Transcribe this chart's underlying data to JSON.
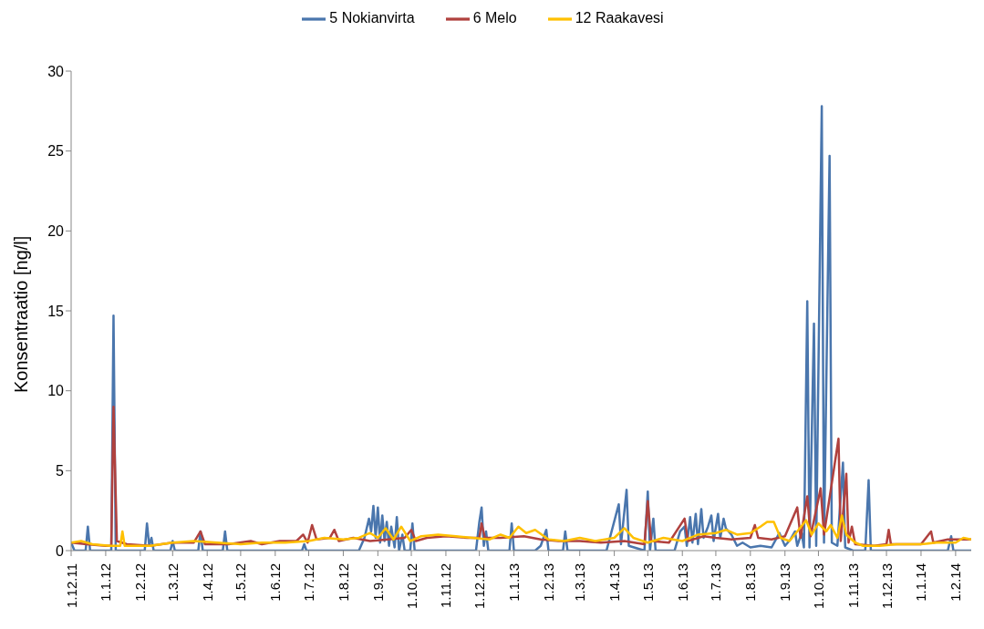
{
  "chart_data": {
    "type": "line",
    "ylabel": "Konsentraatio [ng/l]",
    "legend": "top",
    "grid": false,
    "marker": "none",
    "line_style": "solid",
    "xlim": [
      "2011-12-01",
      "2014-02-15"
    ],
    "ylim": [
      0,
      30
    ],
    "yticks": [
      0,
      5,
      10,
      15,
      20,
      25,
      30
    ],
    "xticks": [
      {
        "value": "2011-12-01",
        "label": "1.12.11"
      },
      {
        "value": "2012-01-01",
        "label": "1.1.12"
      },
      {
        "value": "2012-02-01",
        "label": "1.2.12"
      },
      {
        "value": "2012-03-01",
        "label": "1.3.12"
      },
      {
        "value": "2012-04-01",
        "label": "1.4.12"
      },
      {
        "value": "2012-05-01",
        "label": "1.5.12"
      },
      {
        "value": "2012-06-01",
        "label": "1.6.12"
      },
      {
        "value": "2012-07-01",
        "label": "1.7.12"
      },
      {
        "value": "2012-08-01",
        "label": "1.8.12"
      },
      {
        "value": "2012-09-01",
        "label": "1.9.12"
      },
      {
        "value": "2012-10-01",
        "label": "1.10.12"
      },
      {
        "value": "2012-11-01",
        "label": "1.11.12"
      },
      {
        "value": "2012-12-01",
        "label": "1.12.12"
      },
      {
        "value": "2013-01-01",
        "label": "1.1.13"
      },
      {
        "value": "2013-02-01",
        "label": "1.2.13"
      },
      {
        "value": "2013-03-01",
        "label": "1.3.13"
      },
      {
        "value": "2013-04-01",
        "label": "1.4.13"
      },
      {
        "value": "2013-05-01",
        "label": "1.5.13"
      },
      {
        "value": "2013-06-01",
        "label": "1.6.13"
      },
      {
        "value": "2013-07-01",
        "label": "1.7.13"
      },
      {
        "value": "2013-08-01",
        "label": "1.8.13"
      },
      {
        "value": "2013-09-01",
        "label": "1.9.13"
      },
      {
        "value": "2013-10-01",
        "label": "1.10.13"
      },
      {
        "value": "2013-11-01",
        "label": "1.11.13"
      },
      {
        "value": "2013-12-01",
        "label": "1.12.13"
      },
      {
        "value": "2014-01-01",
        "label": "1.1.14"
      },
      {
        "value": "2014-02-01",
        "label": "1.2.14"
      }
    ],
    "series": [
      {
        "name": "5 Nokianvirta",
        "color": "#4a76ad",
        "x": [
          "2011-12-01",
          "2011-12-04",
          "2011-12-14",
          "2011-12-16",
          "2011-12-18",
          "2012-01-06",
          "2012-01-08",
          "2012-01-10",
          "2012-02-05",
          "2012-02-07",
          "2012-02-09",
          "2012-02-11",
          "2012-02-13",
          "2012-02-28",
          "2012-03-01",
          "2012-03-03",
          "2012-03-24",
          "2012-03-26",
          "2012-03-28",
          "2012-04-15",
          "2012-04-17",
          "2012-04-19",
          "2012-06-25",
          "2012-06-27",
          "2012-06-29",
          "2012-08-15",
          "2012-08-20",
          "2012-08-24",
          "2012-08-26",
          "2012-08-28",
          "2012-08-30",
          "2012-09-01",
          "2012-09-03",
          "2012-09-05",
          "2012-09-07",
          "2012-09-09",
          "2012-09-11",
          "2012-09-13",
          "2012-09-16",
          "2012-09-18",
          "2012-09-20",
          "2012-09-23",
          "2012-09-25",
          "2012-09-30",
          "2012-10-02",
          "2012-10-04",
          "2012-11-28",
          "2012-12-01",
          "2012-12-03",
          "2012-12-05",
          "2012-12-07",
          "2012-12-09",
          "2012-12-28",
          "2012-12-30",
          "2013-01-01",
          "2013-01-20",
          "2013-01-25",
          "2013-01-30",
          "2013-02-01",
          "2013-02-14",
          "2013-02-16",
          "2013-02-18",
          "2013-03-25",
          "2013-04-05",
          "2013-04-07",
          "2013-04-12",
          "2013-04-14",
          "2013-04-28",
          "2013-05-01",
          "2013-05-03",
          "2013-05-06",
          "2013-05-08",
          "2013-05-25",
          "2013-05-30",
          "2013-06-03",
          "2013-06-05",
          "2013-06-08",
          "2013-06-10",
          "2013-06-13",
          "2013-06-15",
          "2013-06-18",
          "2013-06-20",
          "2013-06-24",
          "2013-06-27",
          "2013-06-29",
          "2013-07-03",
          "2013-07-05",
          "2013-07-08",
          "2013-07-10",
          "2013-07-15",
          "2013-07-20",
          "2013-07-25",
          "2013-08-01",
          "2013-08-10",
          "2013-08-20",
          "2013-08-27",
          "2013-09-01",
          "2013-09-06",
          "2013-09-10",
          "2013-09-12",
          "2013-09-16",
          "2013-09-18",
          "2013-09-21",
          "2013-09-23",
          "2013-09-27",
          "2013-09-29",
          "2013-10-04",
          "2013-10-06",
          "2013-10-11",
          "2013-10-13",
          "2013-10-18",
          "2013-10-23",
          "2013-10-25",
          "2013-11-01",
          "2013-11-12",
          "2013-11-15",
          "2013-11-17",
          "2014-01-25",
          "2014-01-28",
          "2014-01-30",
          "2014-02-15"
        ],
        "values": [
          0.5,
          0,
          0,
          1.5,
          0,
          0,
          14.7,
          0,
          0,
          1.7,
          0.3,
          0.8,
          0,
          0,
          0.6,
          0,
          0,
          1.2,
          0,
          0,
          1.2,
          0,
          0,
          0.4,
          0,
          0,
          0.8,
          2.0,
          1.2,
          2.8,
          0.8,
          2.7,
          0.5,
          2.2,
          0.6,
          1.8,
          0.3,
          1.5,
          0.2,
          2.1,
          0,
          1.0,
          0,
          0,
          1.7,
          0,
          0,
          1.8,
          2.7,
          0.3,
          1.2,
          0,
          0,
          1.7,
          0,
          0,
          0.3,
          1.3,
          0,
          0,
          1.2,
          0,
          0,
          2.9,
          0.4,
          3.8,
          0.3,
          0,
          3.7,
          0,
          2.0,
          0,
          0,
          1.2,
          1.5,
          0.3,
          2.1,
          0.5,
          2.3,
          0.4,
          2.6,
          0.8,
          1.5,
          2.2,
          0.6,
          2.3,
          0.8,
          2.0,
          1.4,
          1.0,
          0.3,
          0.5,
          0.2,
          0.3,
          0.2,
          1.1,
          0.3,
          0.7,
          1.2,
          0.3,
          1.1,
          0.2,
          15.6,
          0.2,
          14.2,
          0.3,
          27.8,
          0.5,
          24.7,
          0.5,
          0.3,
          5.5,
          0.2,
          0,
          0,
          4.4,
          0,
          0,
          0.9,
          0,
          0
        ]
      },
      {
        "name": "6 Melo",
        "color": "#b0413e",
        "x": [
          "2011-12-01",
          "2011-12-15",
          "2012-01-01",
          "2012-01-06",
          "2012-01-08",
          "2012-01-11",
          "2012-01-20",
          "2012-02-10",
          "2012-03-01",
          "2012-03-20",
          "2012-03-26",
          "2012-03-30",
          "2012-04-20",
          "2012-05-10",
          "2012-05-20",
          "2012-06-05",
          "2012-06-20",
          "2012-06-26",
          "2012-06-30",
          "2012-07-04",
          "2012-07-08",
          "2012-07-20",
          "2012-07-24",
          "2012-07-28",
          "2012-08-10",
          "2012-08-25",
          "2012-09-10",
          "2012-09-25",
          "2012-10-01",
          "2012-10-05",
          "2012-10-15",
          "2012-11-01",
          "2012-11-20",
          "2012-12-01",
          "2012-12-03",
          "2012-12-06",
          "2012-12-20",
          "2013-01-10",
          "2013-01-25",
          "2013-02-10",
          "2013-03-01",
          "2013-03-20",
          "2013-04-10",
          "2013-04-28",
          "2013-05-01",
          "2013-05-04",
          "2013-05-20",
          "2013-06-03",
          "2013-06-06",
          "2013-06-20",
          "2013-07-01",
          "2013-07-15",
          "2013-08-01",
          "2013-08-05",
          "2013-08-08",
          "2013-08-20",
          "2013-09-01",
          "2013-09-12",
          "2013-09-15",
          "2013-09-21",
          "2013-09-24",
          "2013-10-03",
          "2013-10-06",
          "2013-10-19",
          "2013-10-21",
          "2013-10-26",
          "2013-10-28",
          "2013-10-31",
          "2013-11-03",
          "2013-11-20",
          "2013-12-01",
          "2013-12-03",
          "2013-12-05",
          "2014-01-01",
          "2014-01-10",
          "2014-01-12",
          "2014-01-25",
          "2014-02-15"
        ],
        "values": [
          0.5,
          0.4,
          0.3,
          0.3,
          9.0,
          0.6,
          0.4,
          0.3,
          0.5,
          0.5,
          1.2,
          0.4,
          0.4,
          0.6,
          0.4,
          0.6,
          0.6,
          1.0,
          0.5,
          1.6,
          0.7,
          0.8,
          1.3,
          0.6,
          0.8,
          0.6,
          0.7,
          0.8,
          1.3,
          0.6,
          0.8,
          0.9,
          0.8,
          0.8,
          1.7,
          0.8,
          0.8,
          0.9,
          0.7,
          0.6,
          0.6,
          0.5,
          0.6,
          0.4,
          3.1,
          0.6,
          0.5,
          2.0,
          0.6,
          0.9,
          0.8,
          0.7,
          0.8,
          1.6,
          0.8,
          0.7,
          0.9,
          2.7,
          0.8,
          3.4,
          0.9,
          3.9,
          1.0,
          7.0,
          0.6,
          4.8,
          0.5,
          1.5,
          0.4,
          0.3,
          0.4,
          1.3,
          0.4,
          0.4,
          1.2,
          0.5,
          0.7,
          0.7
        ]
      },
      {
        "name": "12 Raakavesi",
        "color": "#ffc000",
        "x": [
          "2011-12-01",
          "2011-12-10",
          "2011-12-20",
          "2012-01-05",
          "2012-01-14",
          "2012-01-16",
          "2012-01-18",
          "2012-02-10",
          "2012-03-01",
          "2012-03-20",
          "2012-04-10",
          "2012-05-01",
          "2012-05-20",
          "2012-06-10",
          "2012-07-01",
          "2012-07-15",
          "2012-08-01",
          "2012-08-15",
          "2012-08-25",
          "2012-09-01",
          "2012-09-08",
          "2012-09-15",
          "2012-09-22",
          "2012-09-30",
          "2012-10-10",
          "2012-10-25",
          "2012-11-10",
          "2012-11-25",
          "2012-12-10",
          "2012-12-20",
          "2012-12-28",
          "2013-01-05",
          "2013-01-12",
          "2013-01-20",
          "2013-02-01",
          "2013-02-15",
          "2013-03-01",
          "2013-03-15",
          "2013-04-01",
          "2013-04-10",
          "2013-04-18",
          "2013-05-01",
          "2013-05-15",
          "2013-06-01",
          "2013-06-15",
          "2013-07-01",
          "2013-07-10",
          "2013-07-20",
          "2013-08-01",
          "2013-08-10",
          "2013-08-16",
          "2013-08-22",
          "2013-08-28",
          "2013-09-05",
          "2013-09-12",
          "2013-09-20",
          "2013-09-25",
          "2013-10-01",
          "2013-10-08",
          "2013-10-12",
          "2013-10-18",
          "2013-10-22",
          "2013-10-26",
          "2013-11-03",
          "2013-11-10",
          "2013-11-25",
          "2013-12-10",
          "2014-01-01",
          "2014-01-15",
          "2014-02-01",
          "2014-02-08",
          "2014-02-15"
        ],
        "values": [
          0.5,
          0.6,
          0.4,
          0.3,
          0.3,
          1.2,
          0.3,
          0.3,
          0.5,
          0.6,
          0.5,
          0.4,
          0.5,
          0.5,
          0.6,
          0.8,
          0.7,
          0.8,
          1.1,
          0.8,
          1.4,
          0.7,
          1.5,
          0.6,
          0.9,
          1.0,
          0.9,
          0.8,
          0.7,
          1.0,
          0.8,
          1.5,
          1.1,
          1.3,
          0.7,
          0.6,
          0.8,
          0.6,
          0.8,
          1.4,
          0.8,
          0.5,
          0.8,
          0.6,
          1.0,
          1.1,
          1.3,
          1.0,
          1.1,
          1.5,
          1.8,
          1.8,
          0.8,
          0.6,
          1.2,
          1.9,
          1.0,
          1.7,
          1.2,
          1.6,
          0.8,
          2.2,
          1.0,
          0.5,
          0.3,
          0.3,
          0.4,
          0.4,
          0.5,
          0.5,
          0.8,
          0.7
        ]
      }
    ]
  }
}
